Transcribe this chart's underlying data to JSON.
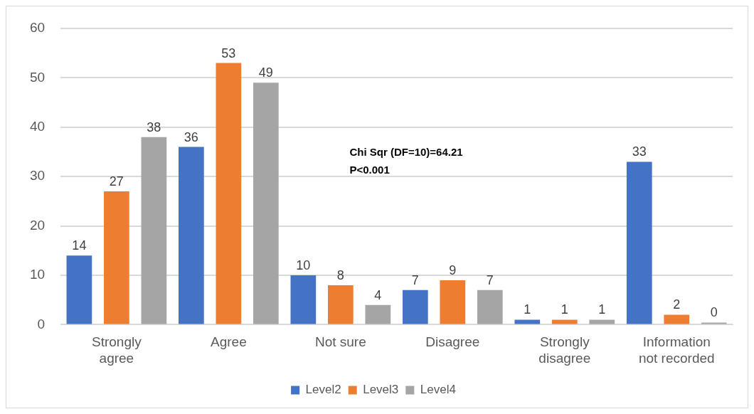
{
  "chart_data": {
    "type": "bar",
    "categories": [
      "Strongly\nagree",
      "Agree",
      "Not sure",
      "Disagree",
      "Strongly\ndisagree",
      "Information\nnot recorded"
    ],
    "series": [
      {
        "name": "Level2",
        "color": "#4472c4",
        "values": [
          14,
          36,
          10,
          7,
          1,
          33
        ]
      },
      {
        "name": "Level3",
        "color": "#ed7d31",
        "values": [
          27,
          53,
          8,
          9,
          1,
          2
        ]
      },
      {
        "name": "Level4",
        "color": "#a5a5a5",
        "values": [
          38,
          49,
          4,
          7,
          1,
          0
        ]
      }
    ],
    "ylim": [
      0,
      60
    ],
    "yticks": [
      0,
      10,
      20,
      30,
      40,
      50,
      60
    ],
    "grid": "y",
    "legend": "bottom",
    "data_labels": true,
    "annotations": [
      "Chi Sqr (DF=10)=64.21",
      "P<0.001"
    ]
  }
}
